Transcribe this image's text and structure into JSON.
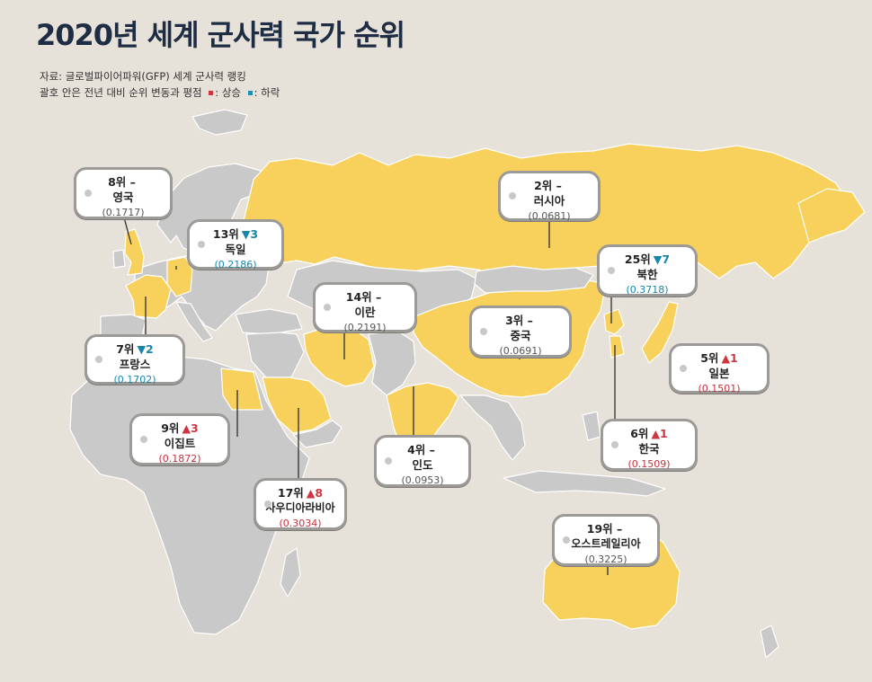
{
  "title": "2020년 세계 군사력 국가 순위",
  "source": "자료: 글로벌파이어파워(GFP) 세계 군사력 랭킹",
  "note_prefix": "괄호 안은 전년 대비 순위 변동과 평점",
  "legend_up": ": 상승",
  "legend_down": ": 하락",
  "colors": {
    "ranked": "#f7d15c",
    "other": "#c9c9c9",
    "up": "#d0343f",
    "down": "#1686ad",
    "sea": "#e6e1d9"
  },
  "countries": [
    {
      "id": "uk",
      "rank": "8위 –",
      "change": "",
      "dir": "",
      "name": "영국",
      "score": "(0.1717)"
    },
    {
      "id": "germany",
      "rank": "13위",
      "change": "▼3",
      "dir": "dn",
      "name": "독일",
      "score": "(0.2186)"
    },
    {
      "id": "russia",
      "rank": "2위 –",
      "change": "",
      "dir": "",
      "name": "러시아",
      "score": "(0.0681)"
    },
    {
      "id": "nkorea",
      "rank": "25위",
      "change": "▼7",
      "dir": "dn",
      "name": "북한",
      "score": "(0.3718)"
    },
    {
      "id": "iran",
      "rank": "14위 –",
      "change": "",
      "dir": "",
      "name": "이란",
      "score": "(0.2191)"
    },
    {
      "id": "china",
      "rank": "3위 –",
      "change": "",
      "dir": "",
      "name": "중국",
      "score": "(0.0691)"
    },
    {
      "id": "france",
      "rank": "7위",
      "change": "▼2",
      "dir": "dn",
      "name": "프랑스",
      "score": "(0.1702)"
    },
    {
      "id": "japan",
      "rank": "5위",
      "change": "▲1",
      "dir": "up",
      "name": "일본",
      "score": "(0.1501)"
    },
    {
      "id": "egypt",
      "rank": "9위",
      "change": "▲3",
      "dir": "up",
      "name": "이집트",
      "score": "(0.1872)"
    },
    {
      "id": "skorea",
      "rank": "6위",
      "change": "▲1",
      "dir": "up",
      "name": "한국",
      "score": "(0.1509)"
    },
    {
      "id": "india",
      "rank": "4위 –",
      "change": "",
      "dir": "",
      "name": "인도",
      "score": "(0.0953)"
    },
    {
      "id": "saudi",
      "rank": "17위",
      "change": "▲8",
      "dir": "up",
      "name": "사우디아라비아",
      "score": "(0.3034)"
    },
    {
      "id": "australia",
      "rank": "19위 –",
      "change": "",
      "dir": "",
      "name": "오스트레일리아",
      "score": "(0.3225)"
    }
  ]
}
